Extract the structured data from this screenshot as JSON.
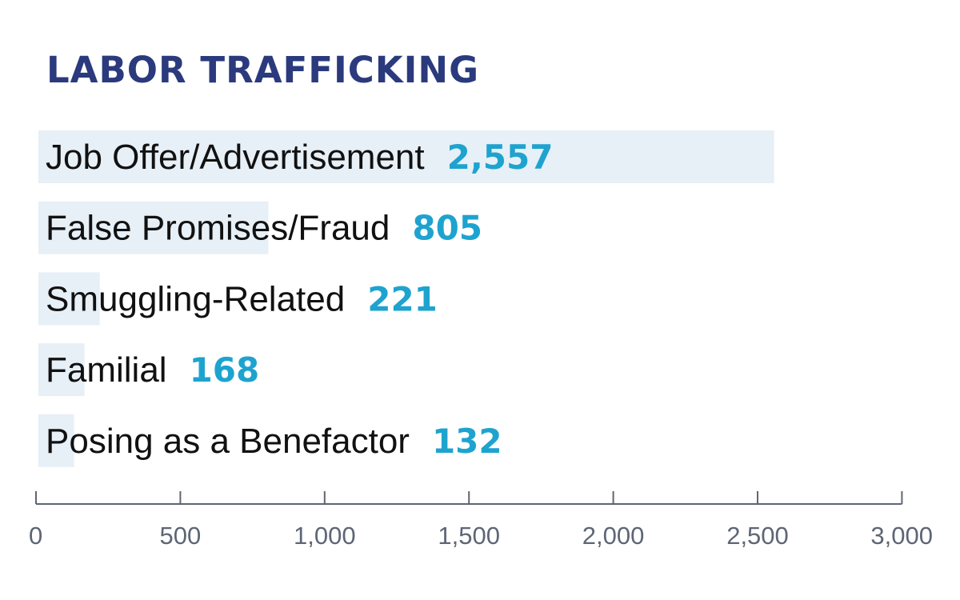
{
  "title": "LABOR TRAFFICKING",
  "colors": {
    "title": "#2b3a7d",
    "bar_fill": "#e7eff7",
    "value": "#1ea3cf",
    "label": "#111111",
    "axis": "#5e6675"
  },
  "chart_data": {
    "type": "bar",
    "orientation": "horizontal",
    "title": "LABOR TRAFFICKING",
    "xlabel": "",
    "ylabel": "",
    "xlim": [
      0,
      3000
    ],
    "grid": false,
    "legend": "none",
    "categories": [
      "Job Offer/Advertisement",
      "False Promises/Fraud",
      "Smuggling-Related",
      "Familial",
      "Posing as a Benefactor"
    ],
    "values": [
      2557,
      805,
      221,
      168,
      132
    ],
    "value_labels": [
      "2,557",
      "805",
      "221",
      "168",
      "132"
    ],
    "ticks": [
      0,
      500,
      1000,
      1500,
      2000,
      2500,
      3000
    ],
    "tick_labels": [
      "0",
      "500",
      "1,000",
      "1,500",
      "2,000",
      "2,500",
      "3,000"
    ]
  }
}
